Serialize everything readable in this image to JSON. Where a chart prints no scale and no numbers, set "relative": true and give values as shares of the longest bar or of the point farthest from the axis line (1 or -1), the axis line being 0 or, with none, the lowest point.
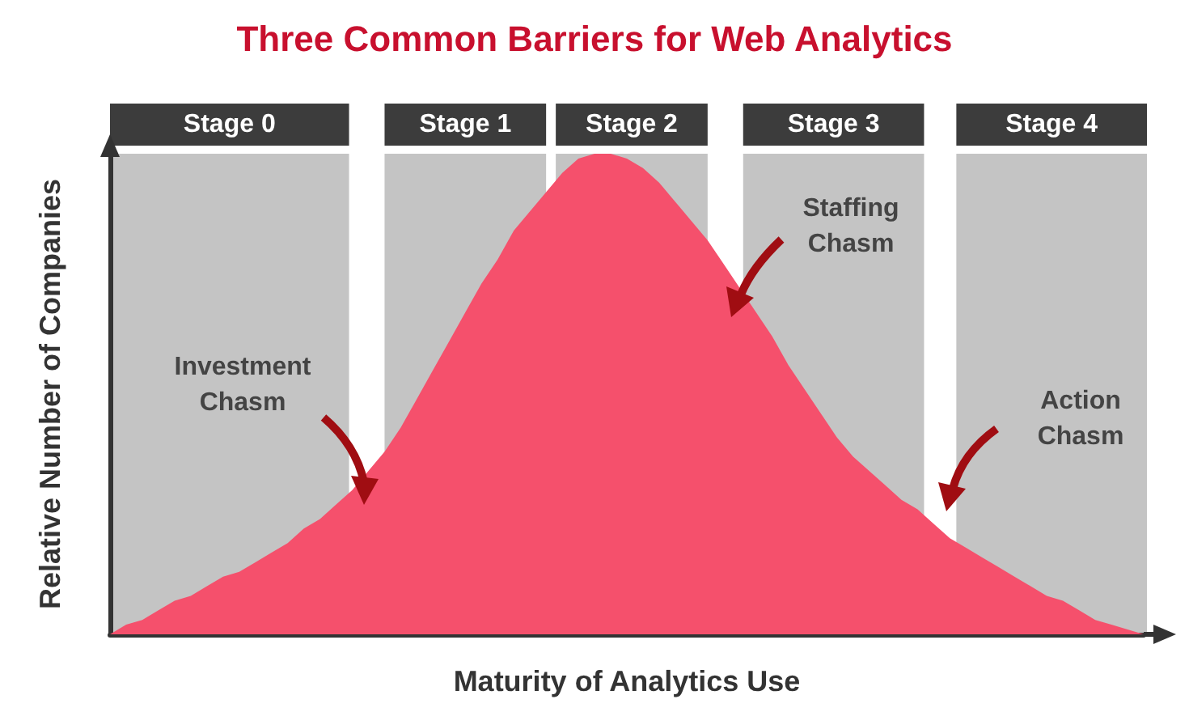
{
  "chart_data": {
    "type": "area",
    "title": "Three Common Barriers for Web Analytics",
    "xlabel": "Maturity of Analytics Use",
    "ylabel": "Relative Number of Companies",
    "relative": true,
    "grid": false,
    "categories": [
      null,
      null,
      null,
      null,
      null,
      null,
      null,
      null,
      null,
      null,
      null,
      null,
      null,
      null,
      null,
      null,
      null,
      null,
      null,
      null,
      null,
      null,
      null,
      null,
      null,
      null,
      null,
      null,
      null,
      null,
      null,
      null,
      null,
      null,
      null,
      null,
      null,
      null,
      null,
      null,
      null,
      null,
      null,
      null,
      null,
      null,
      null,
      null,
      null,
      null,
      null,
      null,
      null,
      null,
      null,
      null,
      null,
      null,
      null,
      null,
      null,
      null,
      null,
      null,
      null
    ],
    "series": [
      {
        "color": "#f5506c",
        "values": [
          0,
          0.02,
          0.03,
          0.05,
          0.07,
          0.08,
          0.1,
          0.12,
          0.13,
          0.15,
          0.17,
          0.19,
          0.22,
          0.24,
          0.27,
          0.3,
          0.34,
          0.38,
          0.43,
          0.49,
          0.55,
          0.61,
          0.67,
          0.73,
          0.78,
          0.84,
          0.88,
          0.92,
          0.96,
          0.99,
          1,
          1,
          0.99,
          0.97,
          0.94,
          0.9,
          0.86,
          0.82,
          0.77,
          0.72,
          0.67,
          0.62,
          0.56,
          0.51,
          0.46,
          0.41,
          0.37,
          0.34,
          0.31,
          0.28,
          0.26,
          0.23,
          0.2,
          0.18,
          0.16,
          0.14,
          0.12,
          0.1,
          0.08,
          0.07,
          0.05,
          0.03,
          0.02,
          0.01,
          0
        ]
      }
    ],
    "annotations": [
      "Stage 0",
      "Stage 1",
      "Stage 2",
      "Stage 3",
      "Stage 4",
      "Investment\nChasm",
      "Staffing\nChasm",
      "Action\nChasm"
    ]
  }
}
